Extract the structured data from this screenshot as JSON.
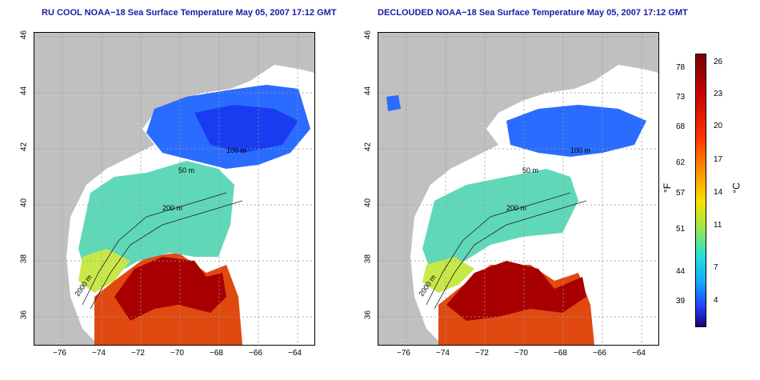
{
  "titles": {
    "left": "RU COOL NOAA−18 Sea Surface Temperature May 05, 2007 17:12 GMT",
    "right": "DECLOUDED NOAA−18 Sea Surface Temperature May 05, 2007 17:12 GMT"
  },
  "axes": {
    "x_ticks": [
      "−76",
      "−74",
      "−72",
      "−70",
      "−68",
      "−66",
      "−64"
    ],
    "y_ticks": [
      "36",
      "38",
      "40",
      "42",
      "44",
      "46"
    ]
  },
  "contour_labels": {
    "isobath_200": "200 m",
    "isobath_50": "50 m",
    "isobath_2000": "2000 m",
    "isobath_100": "100 m"
  },
  "colorbar": {
    "fahrenheit_ticks": [
      "78",
      "73",
      "68",
      "62",
      "57",
      "51",
      "44",
      "39"
    ],
    "celsius_ticks": [
      "26",
      "23",
      "20",
      "17",
      "14",
      "11",
      "7",
      "4"
    ],
    "unit_f": "°F",
    "unit_c": "°C"
  },
  "colors": {
    "land": "#c0c0c0",
    "title": "#1a1aa6",
    "cold": "#1a40ff",
    "warm": "#c40000"
  }
}
